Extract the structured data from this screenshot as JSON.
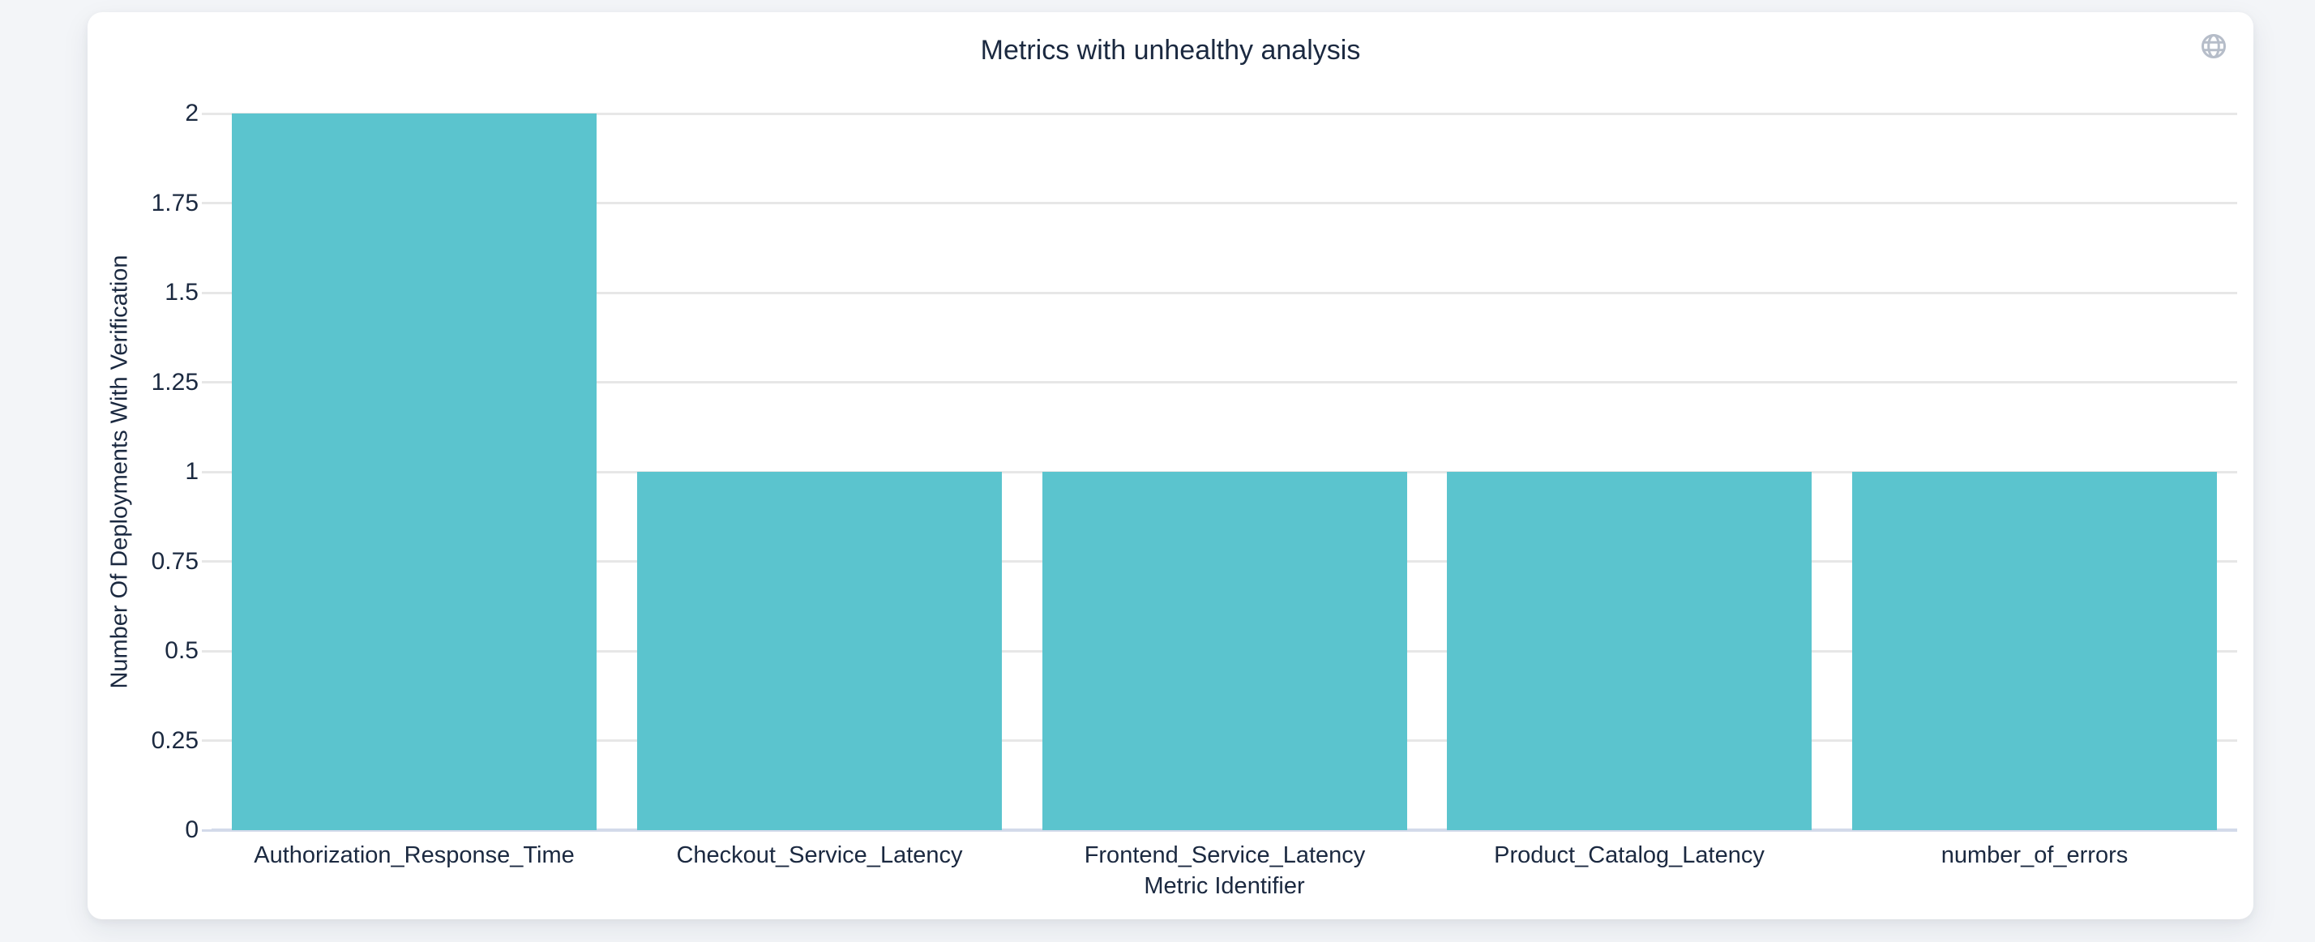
{
  "header": {
    "icon": "globe-icon"
  },
  "chart_data": {
    "type": "bar",
    "title": "Metrics with unhealthy analysis",
    "categories": [
      "Authorization_Response_Time",
      "Checkout_Service_Latency",
      "Frontend_Service_Latency",
      "Product_Catalog_Latency",
      "number_of_errors"
    ],
    "values": [
      2,
      1,
      1,
      1,
      1
    ],
    "xlabel": "Metric Identifier",
    "ylabel": "Number Of Deployments With Verification",
    "ylim": [
      0,
      2
    ],
    "yticks": [
      "0",
      "0.25",
      "0.5",
      "0.75",
      "1",
      "1.25",
      "1.5",
      "1.75",
      "2"
    ],
    "grid": true,
    "legend_position": "none",
    "bar_color": "#5bc4ce",
    "grid_color": "#e7e7e7",
    "zero_line_color": "#d3daea",
    "text_color": "#1b2940",
    "icon_color": "#b6bdc9"
  }
}
